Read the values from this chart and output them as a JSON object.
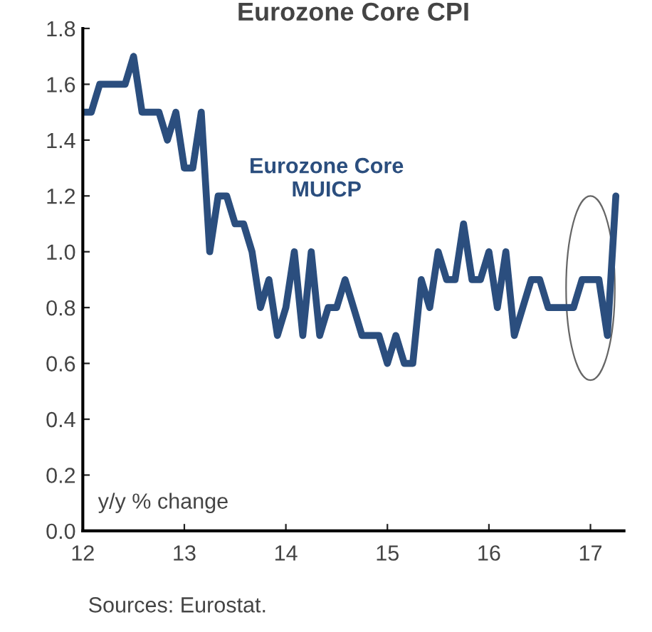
{
  "chart_data": {
    "type": "line",
    "title": "Eurozone Core CPI",
    "x": [
      12,
      12.0833,
      12.1667,
      12.25,
      12.3333,
      12.4167,
      12.5,
      12.5833,
      12.6667,
      12.75,
      12.8333,
      12.9167,
      13,
      13.0833,
      13.1667,
      13.25,
      13.3333,
      13.4167,
      13.5,
      13.5833,
      13.6667,
      13.75,
      13.8333,
      13.9167,
      14,
      14.0833,
      14.1667,
      14.25,
      14.3333,
      14.4167,
      14.5,
      14.5833,
      14.6667,
      14.75,
      14.8333,
      14.9167,
      15,
      15.0833,
      15.1667,
      15.25,
      15.3333,
      15.4167,
      15.5,
      15.5833,
      15.6667,
      15.75,
      15.8333,
      15.9167,
      16,
      16.0833,
      16.1667,
      16.25,
      16.3333,
      16.4167,
      16.5,
      16.5833,
      16.6667,
      16.75,
      16.8333,
      16.9167,
      17,
      17.0833,
      17.1667,
      17.25
    ],
    "series": [
      {
        "name": "Eurozone Core\nMUICP",
        "color": "#2b4e7e",
        "values": [
          1.5,
          1.5,
          1.6,
          1.6,
          1.6,
          1.6,
          1.7,
          1.5,
          1.5,
          1.5,
          1.4,
          1.5,
          1.3,
          1.3,
          1.5,
          1.0,
          1.2,
          1.2,
          1.1,
          1.1,
          1.0,
          0.8,
          0.9,
          0.7,
          0.8,
          1.0,
          0.7,
          1.0,
          0.7,
          0.8,
          0.8,
          0.9,
          0.8,
          0.7,
          0.7,
          0.7,
          0.6,
          0.7,
          0.6,
          0.6,
          0.9,
          0.8,
          1.0,
          0.9,
          0.9,
          1.1,
          0.9,
          0.9,
          1.0,
          0.8,
          1.0,
          0.7,
          0.8,
          0.9,
          0.9,
          0.8,
          0.8,
          0.8,
          0.8,
          0.9,
          0.9,
          0.9,
          0.7,
          1.2
        ]
      }
    ],
    "xlim": [
      12,
      17.33
    ],
    "xticks": [
      12,
      13,
      14,
      15,
      16,
      17
    ],
    "ylim": [
      0,
      1.8
    ],
    "yticks": [
      {
        "value": 0,
        "label": "0.0"
      },
      {
        "value": 0.2,
        "label": "0.2"
      },
      {
        "value": 0.4,
        "label": "0.4"
      },
      {
        "value": 0.6,
        "label": "0.6"
      },
      {
        "value": 0.8,
        "label": "0.8"
      },
      {
        "value": 1.0,
        "label": "1.0"
      },
      {
        "value": 1.2,
        "label": "1.2"
      },
      {
        "value": 1.4,
        "label": "1.4"
      },
      {
        "value": 1.6,
        "label": "1.6"
      },
      {
        "value": 1.8,
        "label": "1.8"
      }
    ],
    "annotations": [
      "y/y % change",
      "Sources: Eurostat."
    ],
    "grid": false,
    "legend": false,
    "marker": "none",
    "line_style": "solid"
  }
}
